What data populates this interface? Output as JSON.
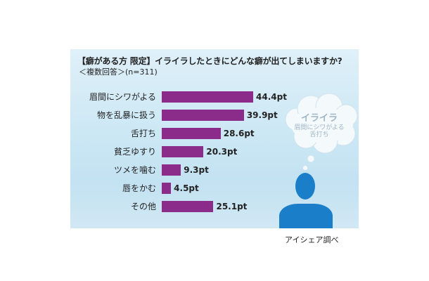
{
  "chart_data": {
    "type": "bar",
    "orientation": "horizontal",
    "title": "【癖がある方 限定】イライラしたときにどんな癖が出てしまいますか?",
    "subtitle": "＜複数回答＞(n=311)",
    "categories": [
      "眉間にシワがよる",
      "物を乱暴に扱う",
      "舌打ち",
      "貧乏ゆすり",
      "ツメを噛む",
      "唇をかむ",
      "その他"
    ],
    "values": [
      44.4,
      39.9,
      28.6,
      20.3,
      9.3,
      4.5,
      25.1
    ],
    "value_labels": [
      "44.4pt",
      "39.9pt",
      "28.6pt",
      "20.3pt",
      "9.3pt",
      "4.5pt",
      "25.1pt"
    ],
    "unit": "pt",
    "bar_color": "#8b2c8b",
    "xlim": [
      0,
      50
    ],
    "grid": false,
    "legend": "none"
  },
  "illustration": {
    "thought_bubble_title": "イライラ",
    "thought_bubble_lines": [
      "眉間にシワがよる",
      "舌打ち"
    ],
    "figure_color": "#1a7fc8"
  },
  "source": "アイシェア調べ"
}
